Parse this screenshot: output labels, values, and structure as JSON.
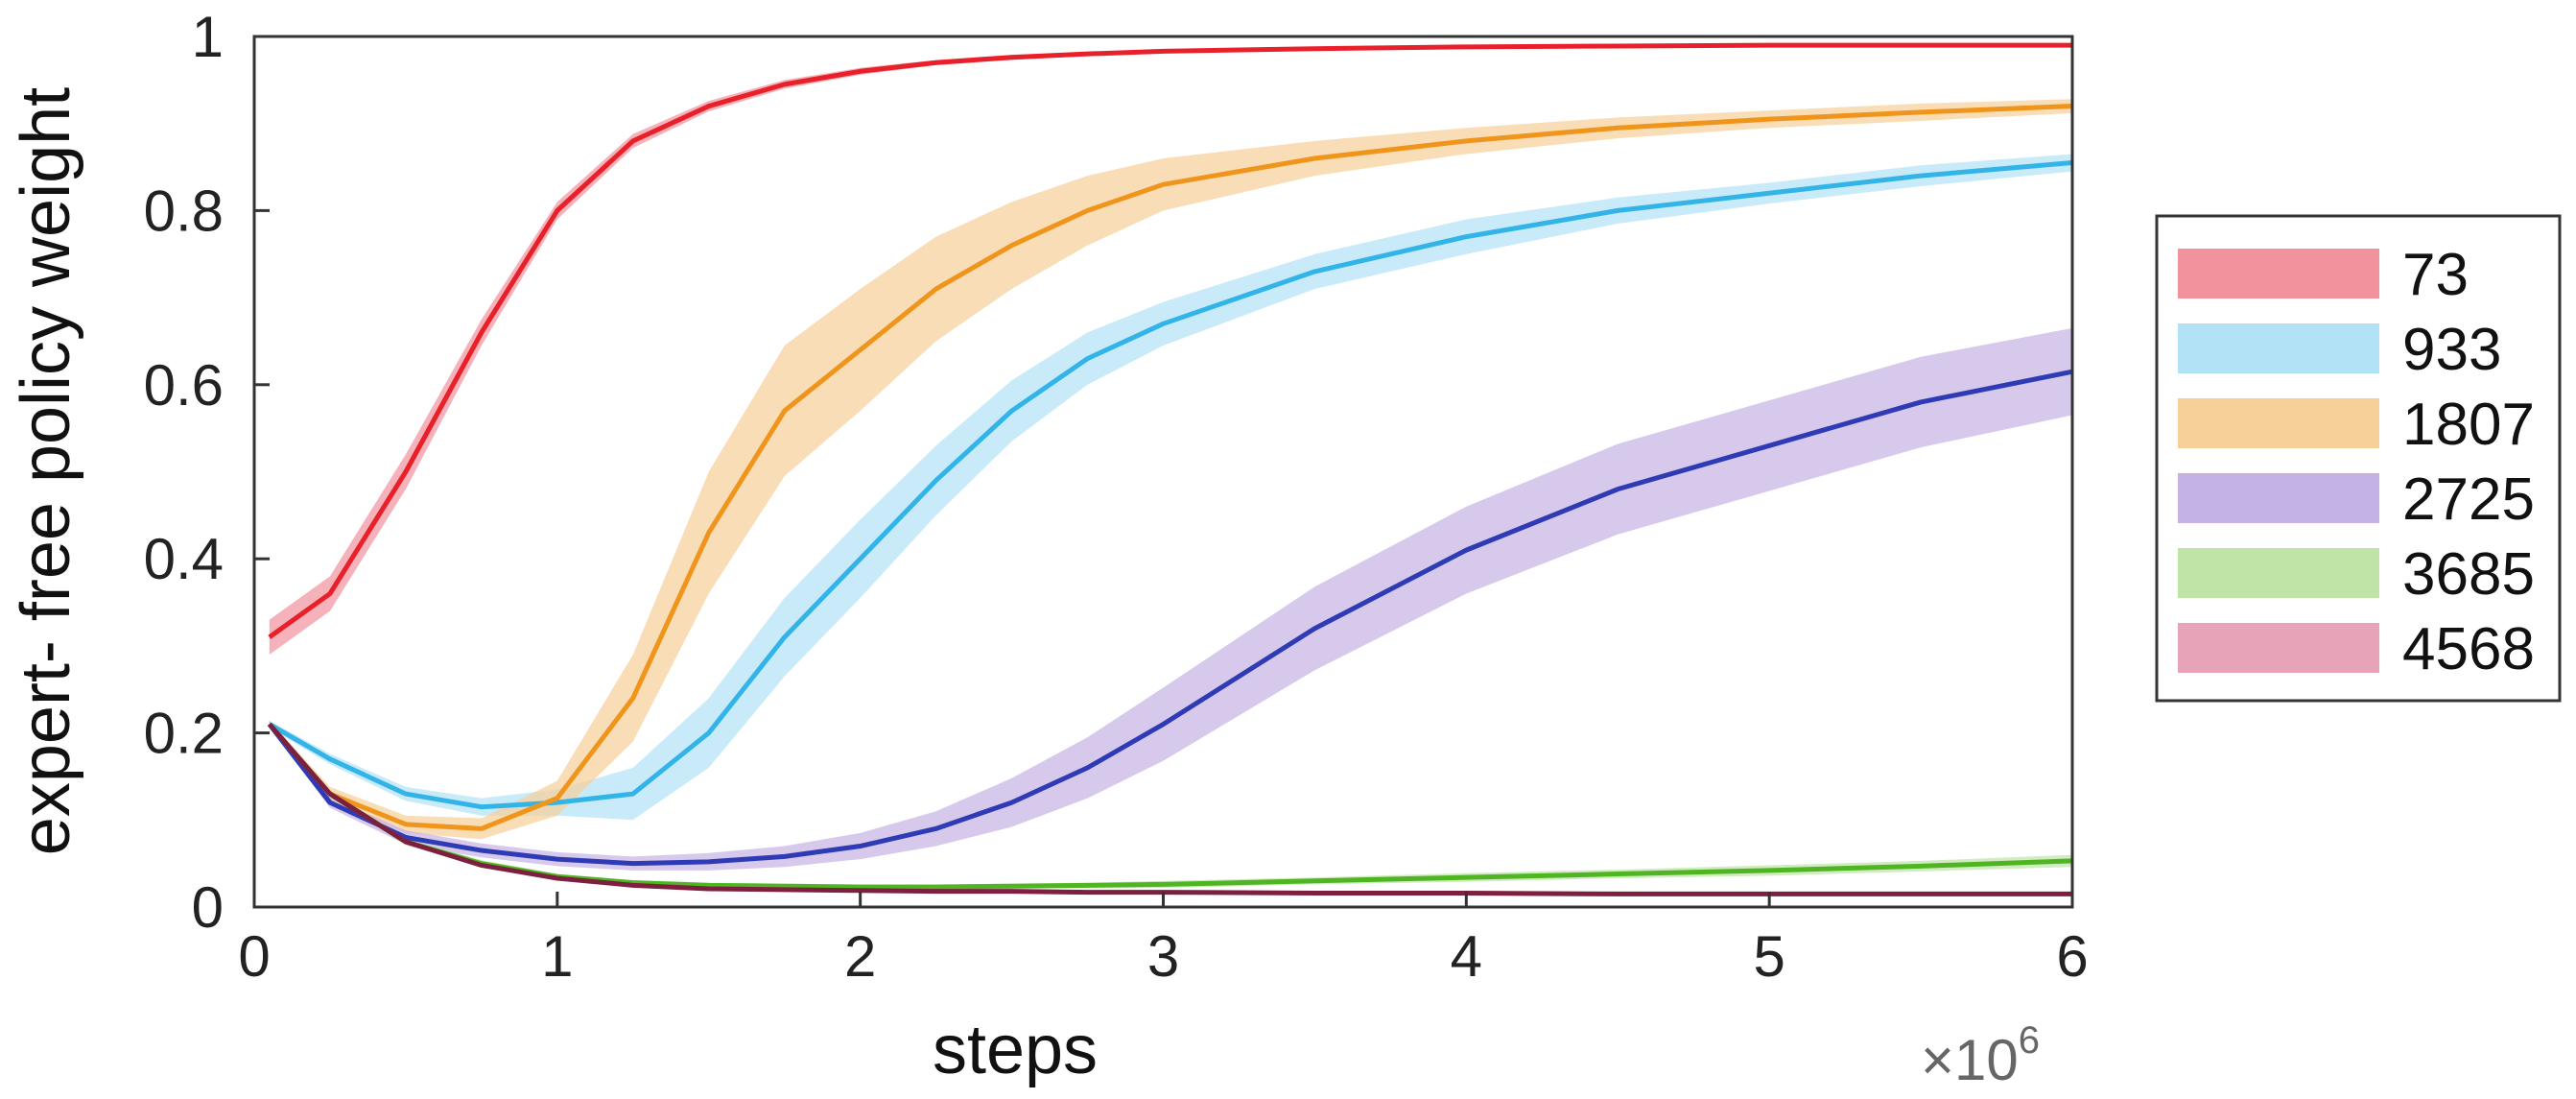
{
  "chart_data": {
    "type": "line",
    "title": "",
    "xlabel": "steps",
    "ylabel": "expert- free policy weight",
    "x_multiplier_label": "×10",
    "x_multiplier_exponent": "6",
    "xlim": [
      0,
      6
    ],
    "ylim": [
      0,
      1
    ],
    "xticks": [
      "0",
      "1",
      "2",
      "3",
      "4",
      "5",
      "6"
    ],
    "yticks": [
      "0",
      "0.2",
      "0.4",
      "0.6",
      "0.8",
      "1"
    ],
    "grid": false,
    "legend_position": "right",
    "x": [
      0.05,
      0.25,
      0.5,
      0.75,
      1.0,
      1.25,
      1.5,
      1.75,
      2.0,
      2.25,
      2.5,
      2.75,
      3.0,
      3.5,
      4.0,
      4.5,
      5.0,
      5.5,
      6.0
    ],
    "series": [
      {
        "name": "73",
        "color": "#e8202a",
        "band_color": "#f1929c",
        "values": [
          0.31,
          0.36,
          0.5,
          0.66,
          0.8,
          0.88,
          0.92,
          0.945,
          0.96,
          0.97,
          0.976,
          0.98,
          0.983,
          0.986,
          0.988,
          0.989,
          0.99,
          0.99,
          0.99
        ],
        "spread": [
          0.02,
          0.02,
          0.02,
          0.015,
          0.01,
          0.008,
          0.006,
          0.005,
          0.004,
          0.003,
          0.003,
          0.002,
          0.002,
          0.002,
          0.002,
          0.002,
          0.002,
          0.002,
          0.002
        ]
      },
      {
        "name": "933",
        "color": "#33b4e8",
        "band_color": "#b2e2f6",
        "values": [
          0.21,
          0.17,
          0.13,
          0.115,
          0.12,
          0.13,
          0.2,
          0.31,
          0.4,
          0.49,
          0.57,
          0.63,
          0.67,
          0.73,
          0.77,
          0.8,
          0.82,
          0.84,
          0.855
        ],
        "spread": [
          0.004,
          0.006,
          0.008,
          0.01,
          0.015,
          0.03,
          0.04,
          0.045,
          0.045,
          0.04,
          0.035,
          0.03,
          0.025,
          0.02,
          0.02,
          0.015,
          0.012,
          0.012,
          0.01
        ]
      },
      {
        "name": "1807",
        "color": "#f0951c",
        "band_color": "#f7cf98",
        "values": [
          0.21,
          0.13,
          0.095,
          0.09,
          0.125,
          0.24,
          0.43,
          0.57,
          0.64,
          0.71,
          0.76,
          0.8,
          0.83,
          0.86,
          0.88,
          0.895,
          0.905,
          0.913,
          0.92
        ],
        "spread": [
          0.004,
          0.008,
          0.01,
          0.012,
          0.02,
          0.05,
          0.07,
          0.075,
          0.07,
          0.06,
          0.05,
          0.04,
          0.03,
          0.02,
          0.015,
          0.012,
          0.01,
          0.01,
          0.008
        ]
      },
      {
        "name": "2725",
        "color": "#2f3ab5",
        "band_color": "#c4b2e4",
        "values": [
          0.21,
          0.12,
          0.08,
          0.065,
          0.055,
          0.05,
          0.052,
          0.058,
          0.07,
          0.09,
          0.12,
          0.16,
          0.21,
          0.32,
          0.41,
          0.48,
          0.53,
          0.58,
          0.615
        ],
        "spread": [
          0.004,
          0.006,
          0.008,
          0.008,
          0.008,
          0.008,
          0.01,
          0.012,
          0.015,
          0.02,
          0.028,
          0.035,
          0.042,
          0.048,
          0.05,
          0.052,
          0.052,
          0.052,
          0.05
        ]
      },
      {
        "name": "3685",
        "color": "#4fb522",
        "band_color": "#bfe4a8",
        "values": [
          0.21,
          0.13,
          0.075,
          0.05,
          0.035,
          0.028,
          0.025,
          0.024,
          0.023,
          0.023,
          0.024,
          0.025,
          0.026,
          0.03,
          0.034,
          0.038,
          0.042,
          0.047,
          0.053
        ],
        "spread": [
          0.003,
          0.004,
          0.004,
          0.004,
          0.003,
          0.003,
          0.003,
          0.003,
          0.003,
          0.003,
          0.003,
          0.003,
          0.004,
          0.004,
          0.005,
          0.005,
          0.006,
          0.006,
          0.007
        ]
      },
      {
        "name": "4568",
        "color": "#7d2040",
        "band_color": "#e7a3b8",
        "values": [
          0.21,
          0.13,
          0.075,
          0.048,
          0.033,
          0.025,
          0.021,
          0.02,
          0.019,
          0.018,
          0.018,
          0.017,
          0.017,
          0.016,
          0.016,
          0.015,
          0.015,
          0.015,
          0.015
        ],
        "spread": [
          0.003,
          0.003,
          0.003,
          0.003,
          0.002,
          0.002,
          0.002,
          0.002,
          0.002,
          0.002,
          0.002,
          0.002,
          0.002,
          0.002,
          0.002,
          0.002,
          0.002,
          0.002,
          0.002
        ]
      }
    ]
  }
}
